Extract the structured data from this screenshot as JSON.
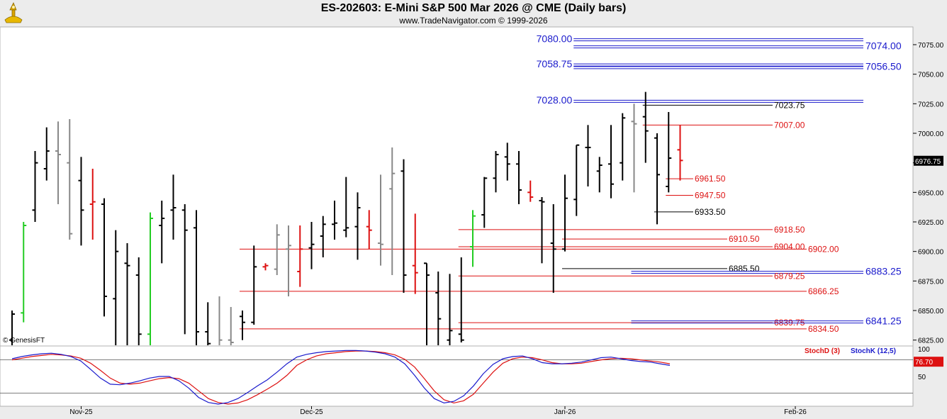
{
  "header": {
    "title": "ES-202603:  E-Mini S&P 500 Mar 2026 @ CME  (Daily bars)",
    "subtitle": "www.TradeNavigator.com © 1999-2026"
  },
  "watermark": "© GenesisFT",
  "chart_data": [
    {
      "type": "ohlc",
      "title": "ES-202603:  E-Mini S&P 500 Mar 2026 @ CME  (Daily bars)",
      "ylim": [
        6820,
        7090
      ],
      "y_ticks": [
        "6825.00",
        "6850.00",
        "6875.00",
        "6900.00",
        "6925.00",
        "6950.00",
        "6975.00",
        "7000.00",
        "7025.00",
        "7050.00",
        "7075.00"
      ],
      "x_ticks": [
        "Nov-25",
        "Dec-25",
        "Jan-26",
        "Feb-26"
      ],
      "last_price": "6976.75",
      "colors": {
        "normal": "#000000",
        "up_signal": "#22cc22",
        "down_signal": "#dd1111",
        "inside": "#888888"
      },
      "bars": [
        {
          "o": 6825,
          "h": 6850,
          "l": 6820,
          "c": 6847,
          "col": "normal"
        },
        {
          "o": 6848,
          "h": 6925,
          "l": 6840,
          "c": 6922,
          "col": "up_signal"
        },
        {
          "o": 6935,
          "h": 6985,
          "l": 6925,
          "c": 6975,
          "col": "normal"
        },
        {
          "o": 6970,
          "h": 7005,
          "l": 6960,
          "c": 6985,
          "col": "normal"
        },
        {
          "o": 6985,
          "h": 7010,
          "l": 6940,
          "c": 6982,
          "col": "inside"
        },
        {
          "o": 6975,
          "h": 7012,
          "l": 6910,
          "c": 6915,
          "col": "inside"
        },
        {
          "o": 6960,
          "h": 6980,
          "l": 6905,
          "c": 6935,
          "col": "normal"
        },
        {
          "o": 6940,
          "h": 6970,
          "l": 6910,
          "c": 6942,
          "col": "down_signal"
        },
        {
          "o": 6940,
          "h": 6945,
          "l": 6845,
          "c": 6862,
          "col": "normal"
        },
        {
          "o": 6860,
          "h": 6918,
          "l": 6810,
          "c": 6900,
          "col": "normal"
        },
        {
          "o": 6890,
          "h": 6907,
          "l": 6820,
          "c": 6888,
          "col": "normal"
        },
        {
          "o": 6880,
          "h": 6895,
          "l": 6820,
          "c": 6830,
          "col": "normal"
        },
        {
          "o": 6830,
          "h": 6933,
          "l": 6820,
          "c": 6928,
          "col": "up_signal"
        },
        {
          "o": 6922,
          "h": 6943,
          "l": 6890,
          "c": 6928,
          "col": "normal"
        },
        {
          "o": 6935,
          "h": 6965,
          "l": 6910,
          "c": 6937,
          "col": "normal"
        },
        {
          "o": 6935,
          "h": 6940,
          "l": 6830,
          "c": 6918,
          "col": "normal"
        },
        {
          "o": 6920,
          "h": 6935,
          "l": 6810,
          "c": 6832,
          "col": "normal"
        },
        {
          "o": 6832,
          "h": 6857,
          "l": 6815,
          "c": 6822,
          "col": "normal"
        },
        {
          "o": 6820,
          "h": 6862,
          "l": 6815,
          "c": 6825,
          "col": "inside"
        },
        {
          "o": 6825,
          "h": 6853,
          "l": 6810,
          "c": 6823,
          "col": "inside"
        },
        {
          "o": 6845,
          "h": 6850,
          "l": 6825,
          "c": 6840,
          "col": "normal"
        },
        {
          "o": 6840,
          "h": 6905,
          "l": 6838,
          "c": 6887,
          "col": "normal"
        },
        {
          "o": 6887,
          "h": 6890,
          "l": 6884,
          "c": 6888,
          "col": "down_signal"
        },
        {
          "o": 6885,
          "h": 6923,
          "l": 6880,
          "c": 6914,
          "col": "inside"
        },
        {
          "o": 6902,
          "h": 6922,
          "l": 6862,
          "c": 6905,
          "col": "inside"
        },
        {
          "o": 6883,
          "h": 6922,
          "l": 6870,
          "c": 6902,
          "col": "down_signal"
        },
        {
          "o": 6903,
          "h": 6925,
          "l": 6885,
          "c": 6906,
          "col": "normal"
        },
        {
          "o": 6913,
          "h": 6930,
          "l": 6895,
          "c": 6923,
          "col": "normal"
        },
        {
          "o": 6923,
          "h": 6943,
          "l": 6910,
          "c": 6924,
          "col": "normal"
        },
        {
          "o": 6918,
          "h": 6963,
          "l": 6912,
          "c": 6920,
          "col": "normal"
        },
        {
          "o": 6921,
          "h": 6950,
          "l": 6893,
          "c": 6937,
          "col": "normal"
        },
        {
          "o": 6921,
          "h": 6935,
          "l": 6902,
          "c": 6918,
          "col": "down_signal"
        },
        {
          "o": 6907,
          "h": 6965,
          "l": 6888,
          "c": 6906,
          "col": "inside"
        },
        {
          "o": 6953,
          "h": 6988,
          "l": 6880,
          "c": 6966,
          "col": "inside"
        },
        {
          "o": 6968,
          "h": 6978,
          "l": 6865,
          "c": 6880,
          "col": "normal"
        },
        {
          "o": 6888,
          "h": 6932,
          "l": 6864,
          "c": 6882,
          "col": "down_signal"
        },
        {
          "o": 6890,
          "h": 6890,
          "l": 6812,
          "c": 6880,
          "col": "normal"
        },
        {
          "o": 6865,
          "h": 6883,
          "l": 6818,
          "c": 6843,
          "col": "normal"
        },
        {
          "o": 6825,
          "h": 6881,
          "l": 6812,
          "c": 6833,
          "col": "normal"
        },
        {
          "o": 6830,
          "h": 6895,
          "l": 6823,
          "c": 6825,
          "col": "normal"
        },
        {
          "o": 6904,
          "h": 6935,
          "l": 6887,
          "c": 6930,
          "col": "up_signal"
        },
        {
          "o": 6931,
          "h": 6963,
          "l": 6920,
          "c": 6962,
          "col": "normal"
        },
        {
          "o": 6962,
          "h": 6985,
          "l": 6950,
          "c": 6982,
          "col": "normal"
        },
        {
          "o": 6980,
          "h": 6992,
          "l": 6960,
          "c": 6974,
          "col": "normal"
        },
        {
          "o": 6974,
          "h": 6985,
          "l": 6940,
          "c": 6952,
          "col": "normal"
        },
        {
          "o": 6950,
          "h": 6960,
          "l": 6942,
          "c": 6946,
          "col": "down_signal"
        },
        {
          "o": 6943,
          "h": 6946,
          "l": 6890,
          "c": 6942,
          "col": "normal"
        },
        {
          "o": 6907,
          "h": 6940,
          "l": 6865,
          "c": 6902,
          "col": "normal"
        },
        {
          "o": 6902,
          "h": 6965,
          "l": 6900,
          "c": 6945,
          "col": "normal"
        },
        {
          "o": 6944,
          "h": 6990,
          "l": 6930,
          "c": 6990,
          "col": "normal"
        },
        {
          "o": 6988,
          "h": 7007,
          "l": 6955,
          "c": 6988,
          "col": "normal"
        },
        {
          "o": 6968,
          "h": 6980,
          "l": 6950,
          "c": 6973,
          "col": "normal"
        },
        {
          "o": 6974,
          "h": 7007,
          "l": 6945,
          "c": 6957,
          "col": "normal"
        },
        {
          "o": 6975,
          "h": 7017,
          "l": 6960,
          "c": 7013,
          "col": "normal"
        },
        {
          "o": 7010,
          "h": 7025,
          "l": 6950,
          "c": 7008,
          "col": "inside"
        },
        {
          "o": 7014,
          "h": 7035,
          "l": 6975,
          "c": 7002,
          "col": "normal"
        },
        {
          "o": 6996,
          "h": 7000,
          "l": 6923,
          "c": 6965,
          "col": "normal"
        },
        {
          "o": 6955,
          "h": 7018,
          "l": 6950,
          "c": 6979,
          "col": "normal"
        },
        {
          "o": 6986,
          "h": 7007,
          "l": 6960,
          "c": 6977,
          "col": "down_signal"
        }
      ],
      "price_lines": [
        {
          "value": "7080.00",
          "side": "left",
          "color": "#1a1acc",
          "start_bar": 49
        },
        {
          "value": "7074.00",
          "side": "right",
          "color": "#1a1acc",
          "start_bar": 49
        },
        {
          "value": "7058.75",
          "side": "left",
          "color": "#1a1acc",
          "start_bar": 49
        },
        {
          "value": "7056.50",
          "side": "right",
          "color": "#1a1acc",
          "start_bar": 49
        },
        {
          "value": "7028.00",
          "side": "left",
          "color": "#1a1acc",
          "start_bar": 49
        },
        {
          "value": "7023.75",
          "side": "mid",
          "color": "#000000",
          "start_bar": 55
        },
        {
          "value": "7007.00",
          "side": "mid",
          "color": "#dd1111",
          "start_bar": 55
        },
        {
          "value": "6961.50",
          "side": "short",
          "color": "#dd1111",
          "start_bar": 57
        },
        {
          "value": "6947.50",
          "side": "short",
          "color": "#dd1111",
          "start_bar": 57
        },
        {
          "value": "6933.50",
          "side": "short",
          "color": "#000000",
          "start_bar": 56
        },
        {
          "value": "6918.50",
          "side": "mid",
          "color": "#dd1111",
          "start_bar": 39
        },
        {
          "value": "6910.50",
          "side": "short2",
          "color": "#dd1111",
          "start_bar": 48
        },
        {
          "value": "6904.00",
          "side": "mid",
          "color": "#dd1111",
          "start_bar": 39
        },
        {
          "value": "6902.00",
          "side": "far",
          "color": "#dd1111",
          "start_bar": 20
        },
        {
          "value": "6885.50",
          "side": "short2",
          "color": "#000000",
          "start_bar": 48
        },
        {
          "value": "6883.25",
          "side": "right",
          "color": "#1a1acc",
          "start_bar": 54
        },
        {
          "value": "6879.25",
          "side": "mid",
          "color": "#dd1111",
          "start_bar": 39
        },
        {
          "value": "6866.25",
          "side": "far",
          "color": "#dd1111",
          "start_bar": 20
        },
        {
          "value": "6839.75",
          "side": "mid",
          "color": "#dd1111",
          "start_bar": 39
        },
        {
          "value": "6841.25",
          "side": "right",
          "color": "#1a1acc",
          "start_bar": 54
        },
        {
          "value": "6834.50",
          "side": "far",
          "color": "#dd1111",
          "start_bar": 20
        }
      ]
    },
    {
      "type": "line",
      "series": [
        {
          "name": "StochD (3)",
          "color": "#dd1111",
          "values": [
            80,
            83,
            86,
            88,
            90,
            89,
            87,
            83,
            74,
            61,
            47,
            38,
            36,
            38,
            42,
            46,
            48,
            46,
            38,
            24,
            10,
            3,
            0,
            2,
            8,
            17,
            27,
            38,
            52,
            70,
            80,
            87,
            91,
            93,
            95,
            96,
            96,
            95,
            93,
            89,
            81,
            67,
            46,
            24,
            8,
            2,
            6,
            18,
            38,
            58,
            74,
            82,
            85,
            84,
            80,
            75,
            73,
            73,
            74,
            77,
            80,
            82,
            83,
            82,
            80,
            78,
            76,
            73
          ]
        },
        {
          "name": "StochK (12,5)",
          "color": "#1a1acc",
          "values": [
            82,
            86,
            89,
            91,
            92,
            90,
            86,
            78,
            63,
            47,
            36,
            35,
            38,
            42,
            47,
            50,
            50,
            42,
            29,
            12,
            3,
            0,
            3,
            10,
            21,
            33,
            44,
            58,
            73,
            85,
            90,
            93,
            95,
            96,
            97,
            97,
            96,
            94,
            91,
            85,
            73,
            52,
            29,
            10,
            2,
            5,
            15,
            33,
            55,
            72,
            82,
            86,
            87,
            82,
            75,
            73,
            73,
            74,
            76,
            80,
            84,
            85,
            82,
            79,
            77,
            76,
            73,
            70
          ]
        }
      ],
      "ylim": [
        0,
        100
      ],
      "y_ticks": [
        "100",
        "50"
      ],
      "last_value": "76.70",
      "legend": [
        "StochD (3)",
        "StochK (12,5)"
      ]
    }
  ]
}
